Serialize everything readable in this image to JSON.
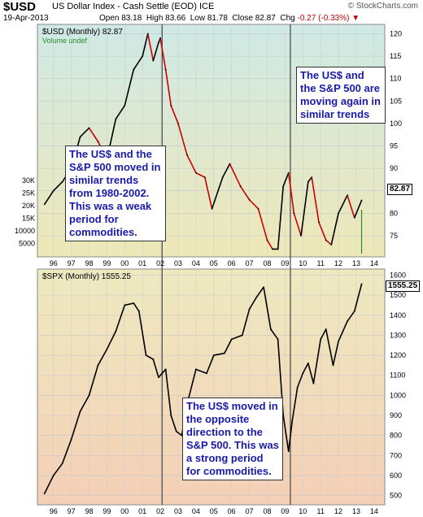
{
  "header": {
    "symbol": "$USD",
    "name": "US Dollar Index - Cash Settle (EOD)  ICE",
    "date": "19-Apr-2013",
    "ohlc": "Open 83.18  High 83.66  Low 81.78  Close 82.87  Chg",
    "chg": "-0.27 (-0.33%)",
    "brand": "© StockCharts.com"
  },
  "annotations": {
    "top_right": "The US$ and the S&P 500 are moving again in similar trends",
    "top_left": "The US$ and the S&P 500 moved in similar trends from 1980-2002. This was a weak period for commodities.",
    "bottom": "The US$ moved in the opposite direction to the S&P 500.  This was a strong period for commodities."
  },
  "panels": {
    "usd_title": "$USD (Monthly) 82.87",
    "usd_volume": "Volume undef",
    "usd_last": "82.87",
    "spx_title": "$SPX (Monthly) 1555.25",
    "spx_last": "1555.25"
  },
  "colors": {
    "usd_bg_top": "#cfe9e6",
    "usd_bg_bottom": "#eee8b8",
    "spx_bg_top": "#eeeac0",
    "spx_bg_bottom": "#f4cfb6",
    "up": "#000000",
    "down": "#cc0000",
    "volume": "#2a8a2a",
    "annotation_text": "#1a1aaa"
  },
  "chart_data": [
    {
      "type": "line",
      "name": "$USD (Monthly)",
      "x": [
        1995.5,
        1996,
        1996.5,
        1997,
        1997.5,
        1998,
        1998.5,
        1999,
        1999.5,
        2000,
        2000.5,
        2001,
        2001.3,
        2001.6,
        2001.9,
        2002,
        2002.3,
        2002.6,
        2003,
        2003.5,
        2004,
        2004.5,
        2004.9,
        2005.5,
        2005.9,
        2006.5,
        2007,
        2007.5,
        2008,
        2008.3,
        2008.6,
        2008.9,
        2009.2,
        2009.5,
        2009.9,
        2010.3,
        2010.5,
        2010.9,
        2011.3,
        2011.6,
        2012,
        2012.5,
        2012.9,
        2013.3
      ],
      "y": [
        82,
        85,
        87,
        90,
        97,
        99,
        96,
        92,
        101,
        104,
        112,
        115,
        120,
        114,
        118,
        119,
        112,
        104,
        100,
        93,
        89,
        88,
        81,
        88,
        91,
        86,
        83,
        81,
        74,
        72,
        72,
        86,
        89,
        80,
        75,
        87,
        88,
        78,
        74,
        73,
        80,
        84,
        79,
        82.87
      ],
      "y_ticks": [
        75,
        80,
        85,
        90,
        95,
        100,
        105,
        110,
        115,
        120
      ],
      "volume_ticks": [
        "30K",
        "25K",
        "20K",
        "15K",
        "10000",
        "5000"
      ],
      "ylim": [
        71,
        121
      ]
    },
    {
      "type": "line",
      "name": "$SPX (Monthly)",
      "x": [
        1995.5,
        1996,
        1996.5,
        1997,
        1997.5,
        1998,
        1998.5,
        1999,
        1999.5,
        2000,
        2000.5,
        2000.8,
        2001.2,
        2001.6,
        2001.9,
        2002.3,
        2002.6,
        2002.9,
        2003.2,
        2003.6,
        2004,
        2004.6,
        2005,
        2005.6,
        2006,
        2006.6,
        2007,
        2007.4,
        2007.8,
        2008.2,
        2008.6,
        2008.9,
        2009.2,
        2009.4,
        2009.7,
        2010,
        2010.3,
        2010.6,
        2011,
        2011.3,
        2011.7,
        2012,
        2012.5,
        2012.9,
        2013.3
      ],
      "y": [
        510,
        600,
        660,
        780,
        920,
        1000,
        1150,
        1230,
        1320,
        1450,
        1460,
        1420,
        1200,
        1180,
        1090,
        1130,
        900,
        820,
        800,
        990,
        1130,
        1110,
        1200,
        1210,
        1280,
        1300,
        1430,
        1490,
        1540,
        1330,
        1280,
        900,
        720,
        870,
        1040,
        1110,
        1160,
        1060,
        1280,
        1330,
        1150,
        1270,
        1370,
        1420,
        1555.25
      ],
      "y_ticks": [
        500,
        600,
        700,
        800,
        900,
        1000,
        1100,
        1200,
        1300,
        1400,
        1500,
        1600
      ],
      "ylim": [
        470,
        1610
      ]
    }
  ],
  "x_axis": {
    "labels": [
      "96",
      "97",
      "98",
      "99",
      "00",
      "01",
      "02",
      "03",
      "04",
      "05",
      "06",
      "07",
      "08",
      "09",
      "10",
      "11",
      "12",
      "13",
      "14"
    ],
    "years": [
      1996,
      1997,
      1998,
      1999,
      2000,
      2001,
      2002,
      2003,
      2004,
      2005,
      2006,
      2007,
      2008,
      2009,
      2010,
      2011,
      2012,
      2013,
      2014
    ],
    "xlim": [
      1995.1,
      2014.6
    ],
    "markers": [
      2002.1,
      2009.3
    ]
  }
}
